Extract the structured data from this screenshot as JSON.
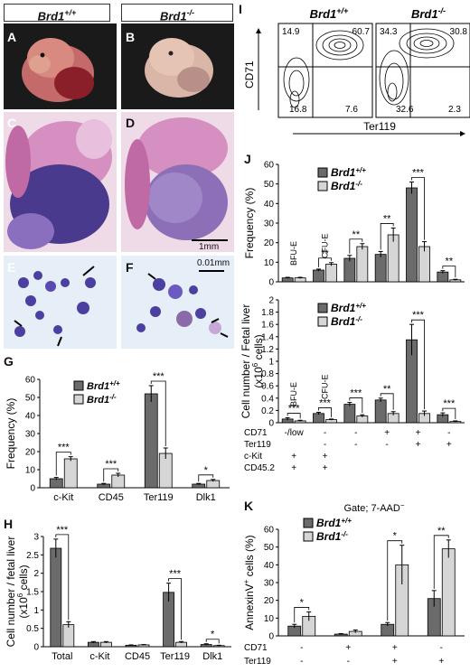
{
  "headers": {
    "wt": "Brd1",
    "wt_sup": "+/+",
    "ko": "Brd1",
    "ko_sup": "-/-"
  },
  "panel_letters": [
    "A",
    "B",
    "C",
    "D",
    "E",
    "F",
    "G",
    "H",
    "I",
    "J",
    "K"
  ],
  "scalebars": {
    "histology": "1mm",
    "cytospin": "0.01mm"
  },
  "legend": {
    "wt": "Brd1",
    "wt_sup": "+/+",
    "ko": "Brd1",
    "ko_sup": "-/-"
  },
  "colors": {
    "wt": "#6b6b6b",
    "ko": "#d6d6d6",
    "embryo_bg": "#1a1a1a",
    "he_tissue": "#c06aa5",
    "he_liver": "#4a3a8e",
    "cyto_bg": "#e6eef8",
    "cell": "#4b3fa0"
  },
  "panel_I": {
    "wt_title": "Brd1",
    "wt_sup": "+/+",
    "ko_title": "Brd1",
    "ko_sup": "-/-",
    "ylabel": "CD71",
    "xlabel": "Ter119",
    "wt_quadrants": {
      "ul": "14.9",
      "ur": "60.7",
      "ll": "16.8",
      "lr": "7.6"
    },
    "ko_quadrants": {
      "ul": "34.3",
      "ur": "30.8",
      "ll": "32.6",
      "lr": "2.3"
    }
  },
  "panel_J_labels": {
    "bfu": "BFU-E",
    "cfu": "CFU-E"
  },
  "panel_J_rows": {
    "names": [
      "CD71",
      "Ter119",
      "c-Kit",
      "CD45.2"
    ],
    "cols": [
      [
        "-/low",
        "",
        "+",
        "+"
      ],
      [
        "-",
        "-",
        "+",
        "+"
      ],
      [
        "-",
        "-",
        "",
        ""
      ],
      [
        "+",
        "-",
        "",
        ""
      ],
      [
        "+",
        "+",
        "",
        ""
      ],
      [
        "-",
        "+",
        "",
        ""
      ]
    ]
  },
  "panel_K": {
    "gate": "Gate; 7-AAD",
    "gate_sup": "−",
    "rows": [
      "CD71",
      "Ter119"
    ],
    "cols": [
      [
        "-",
        "-"
      ],
      [
        "+",
        "-"
      ],
      [
        "+",
        "+"
      ],
      [
        "-",
        "+"
      ]
    ]
  },
  "chart_data": [
    {
      "panel": "G",
      "type": "bar",
      "ylabel": "Frequency (%)",
      "ylim": [
        0,
        60
      ],
      "yticks": [
        "0",
        "10",
        "20",
        "30",
        "40",
        "50",
        "60"
      ],
      "categories": [
        "c-Kit",
        "CD45",
        "Ter119",
        "Dlk1"
      ],
      "series": [
        {
          "name": "Brd1+/+",
          "values": [
            5,
            2,
            52,
            2
          ],
          "err": [
            0.7,
            0.4,
            4.5,
            0.4
          ]
        },
        {
          "name": "Brd1-/-",
          "values": [
            16,
            7,
            19,
            4
          ],
          "err": [
            1.2,
            1.0,
            3.0,
            0.6
          ]
        }
      ],
      "sig": [
        "***",
        "***",
        "***",
        "*"
      ]
    },
    {
      "panel": "H",
      "type": "bar",
      "ylabel": "Cell number / fetal liver",
      "ylabel2": "(x10",
      "ylabel2_sup": "6",
      "ylabel2_end": " cells)",
      "ylim": [
        0,
        3
      ],
      "yticks": [
        "0",
        "0.5",
        "1",
        "1.5",
        "2",
        "2.5",
        "3"
      ],
      "categories": [
        "Total",
        "c-Kit",
        "CD45",
        "Ter119",
        "Dlk1"
      ],
      "series": [
        {
          "name": "Brd1+/+",
          "values": [
            2.68,
            0.12,
            0.04,
            1.48,
            0.06
          ],
          "err": [
            0.25,
            0.02,
            0.01,
            0.25,
            0.02
          ]
        },
        {
          "name": "Brd1-/-",
          "values": [
            0.6,
            0.12,
            0.05,
            0.12,
            0.03
          ],
          "err": [
            0.08,
            0.02,
            0.01,
            0.02,
            0.01
          ]
        }
      ],
      "sig": [
        "***",
        "",
        "",
        "***",
        "*"
      ]
    },
    {
      "panel": "J-top",
      "type": "bar",
      "ylabel": "Frequency (%)",
      "ylim": [
        0,
        60
      ],
      "yticks": [
        "0",
        "10",
        "20",
        "30",
        "40",
        "50",
        "60"
      ],
      "series": [
        {
          "name": "Brd1+/+",
          "values": [
            2,
            6,
            12,
            14,
            48,
            5
          ],
          "err": [
            0.3,
            0.5,
            1.5,
            1.5,
            3.0,
            0.7
          ]
        },
        {
          "name": "Brd1-/-",
          "values": [
            2,
            9,
            18,
            24,
            18,
            1
          ],
          "err": [
            0.3,
            0.8,
            1.5,
            3.5,
            2.5,
            0.3
          ]
        }
      ],
      "sig": [
        "",
        "**",
        "**",
        "**",
        "***",
        "**"
      ]
    },
    {
      "panel": "J-bottom",
      "type": "bar",
      "ylabel": "Cell number / Fetal liver",
      "ylabel2": "(x10",
      "ylabel2_sup": "6",
      "ylabel2_end": " cells)",
      "ylim": [
        0,
        2
      ],
      "yticks": [
        "0",
        "0.2",
        "0.4",
        "0.6",
        "0.8",
        "1",
        "1.2",
        "1.4",
        "1.6",
        "1.8",
        "2"
      ],
      "series": [
        {
          "name": "Brd1+/+",
          "values": [
            0.06,
            0.15,
            0.3,
            0.37,
            1.35,
            0.13
          ],
          "err": [
            0.02,
            0.02,
            0.03,
            0.03,
            0.25,
            0.03
          ]
        },
        {
          "name": "Brd1-/-",
          "values": [
            0.03,
            0.05,
            0.11,
            0.15,
            0.15,
            0.02
          ],
          "err": [
            0.01,
            0.01,
            0.02,
            0.03,
            0.04,
            0.01
          ]
        }
      ],
      "sig": [
        "***",
        "***",
        "***",
        "**",
        "***",
        "***"
      ]
    },
    {
      "panel": "K",
      "type": "bar",
      "ylabel": "AnnexinV",
      "ylabel_sup": "+",
      "ylabel_end": " cells (%)",
      "ylim": [
        0,
        60
      ],
      "yticks": [
        "0",
        "10",
        "20",
        "30",
        "40",
        "50",
        "60"
      ],
      "series": [
        {
          "name": "Brd1+/+",
          "values": [
            5.5,
            1.0,
            6.5,
            21
          ],
          "err": [
            1.0,
            0.3,
            1.0,
            4.5
          ]
        },
        {
          "name": "Brd1-/-",
          "values": [
            11,
            2.5,
            40,
            49
          ],
          "err": [
            2.5,
            0.8,
            11,
            5.0
          ]
        }
      ],
      "sig": [
        "*",
        "",
        "*",
        "**"
      ]
    }
  ]
}
